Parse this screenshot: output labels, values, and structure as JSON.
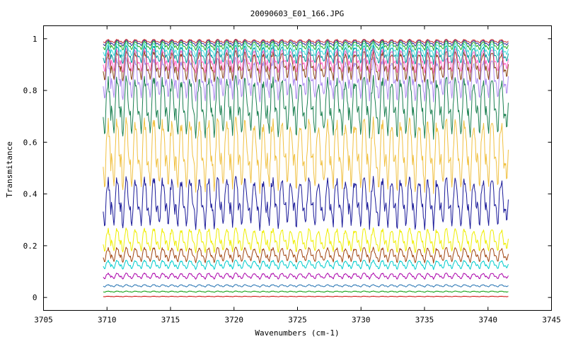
{
  "chart_data": {
    "type": "line",
    "title": "20090603_E01_166.JPG",
    "xlabel": "Wavenumbers (cm-1)",
    "ylabel": "Transmitance",
    "xlim": [
      3705,
      3745
    ],
    "ylim": [
      -0.05,
      1.05
    ],
    "xticks": [
      3705,
      3710,
      3715,
      3720,
      3725,
      3730,
      3735,
      3740,
      3745
    ],
    "xtick_labels": [
      "3705",
      "3710",
      "3715",
      "3720",
      "3725",
      "3730",
      "3735",
      "3740",
      "3745"
    ],
    "yticks": [
      0,
      0.2,
      0.4,
      0.6,
      0.8,
      1
    ],
    "ytick_labels": [
      "0",
      "0.2",
      "0.4",
      "0.6",
      "0.8",
      "1"
    ],
    "x_range": [
      3709.7,
      3741.6
    ],
    "grid": false,
    "legend": "none",
    "series": [
      {
        "color": "#cc0000",
        "baseline": 0.005,
        "line_depth": 0.002
      },
      {
        "color": "#009900",
        "baseline": 0.025,
        "line_depth": 0.004
      },
      {
        "color": "#1f6fb0",
        "baseline": 0.05,
        "line_depth": 0.008
      },
      {
        "color": "#aa00aa",
        "baseline": 0.095,
        "line_depth": 0.02
      },
      {
        "color": "#00cccc",
        "baseline": 0.145,
        "line_depth": 0.03
      },
      {
        "color": "#a0440f",
        "baseline": 0.195,
        "line_depth": 0.05
      },
      {
        "color": "#eeee00",
        "baseline": 0.27,
        "line_depth": 0.08
      },
      {
        "color": "#1a1a99",
        "baseline": 0.47,
        "line_depth": 0.17
      },
      {
        "color": "#f0c040",
        "baseline": 0.7,
        "line_depth": 0.24
      },
      {
        "color": "#1a8050",
        "baseline": 0.86,
        "line_depth": 0.2
      },
      {
        "color": "#aa88ee",
        "baseline": 0.93,
        "line_depth": 0.14
      },
      {
        "color": "#8b4513",
        "baseline": 0.955,
        "line_depth": 0.1
      },
      {
        "color": "#ff66cc",
        "baseline": 0.965,
        "line_depth": 0.08
      },
      {
        "color": "#009999",
        "baseline": 0.975,
        "line_depth": 0.06
      },
      {
        "color": "#44dddd",
        "baseline": 0.985,
        "line_depth": 0.045
      },
      {
        "color": "#22aa22",
        "baseline": 0.992,
        "line_depth": 0.03
      },
      {
        "color": "#333399",
        "baseline": 0.996,
        "line_depth": 0.02
      },
      {
        "color": "#cc3333",
        "baseline": 0.998,
        "line_depth": 0.012
      }
    ]
  }
}
